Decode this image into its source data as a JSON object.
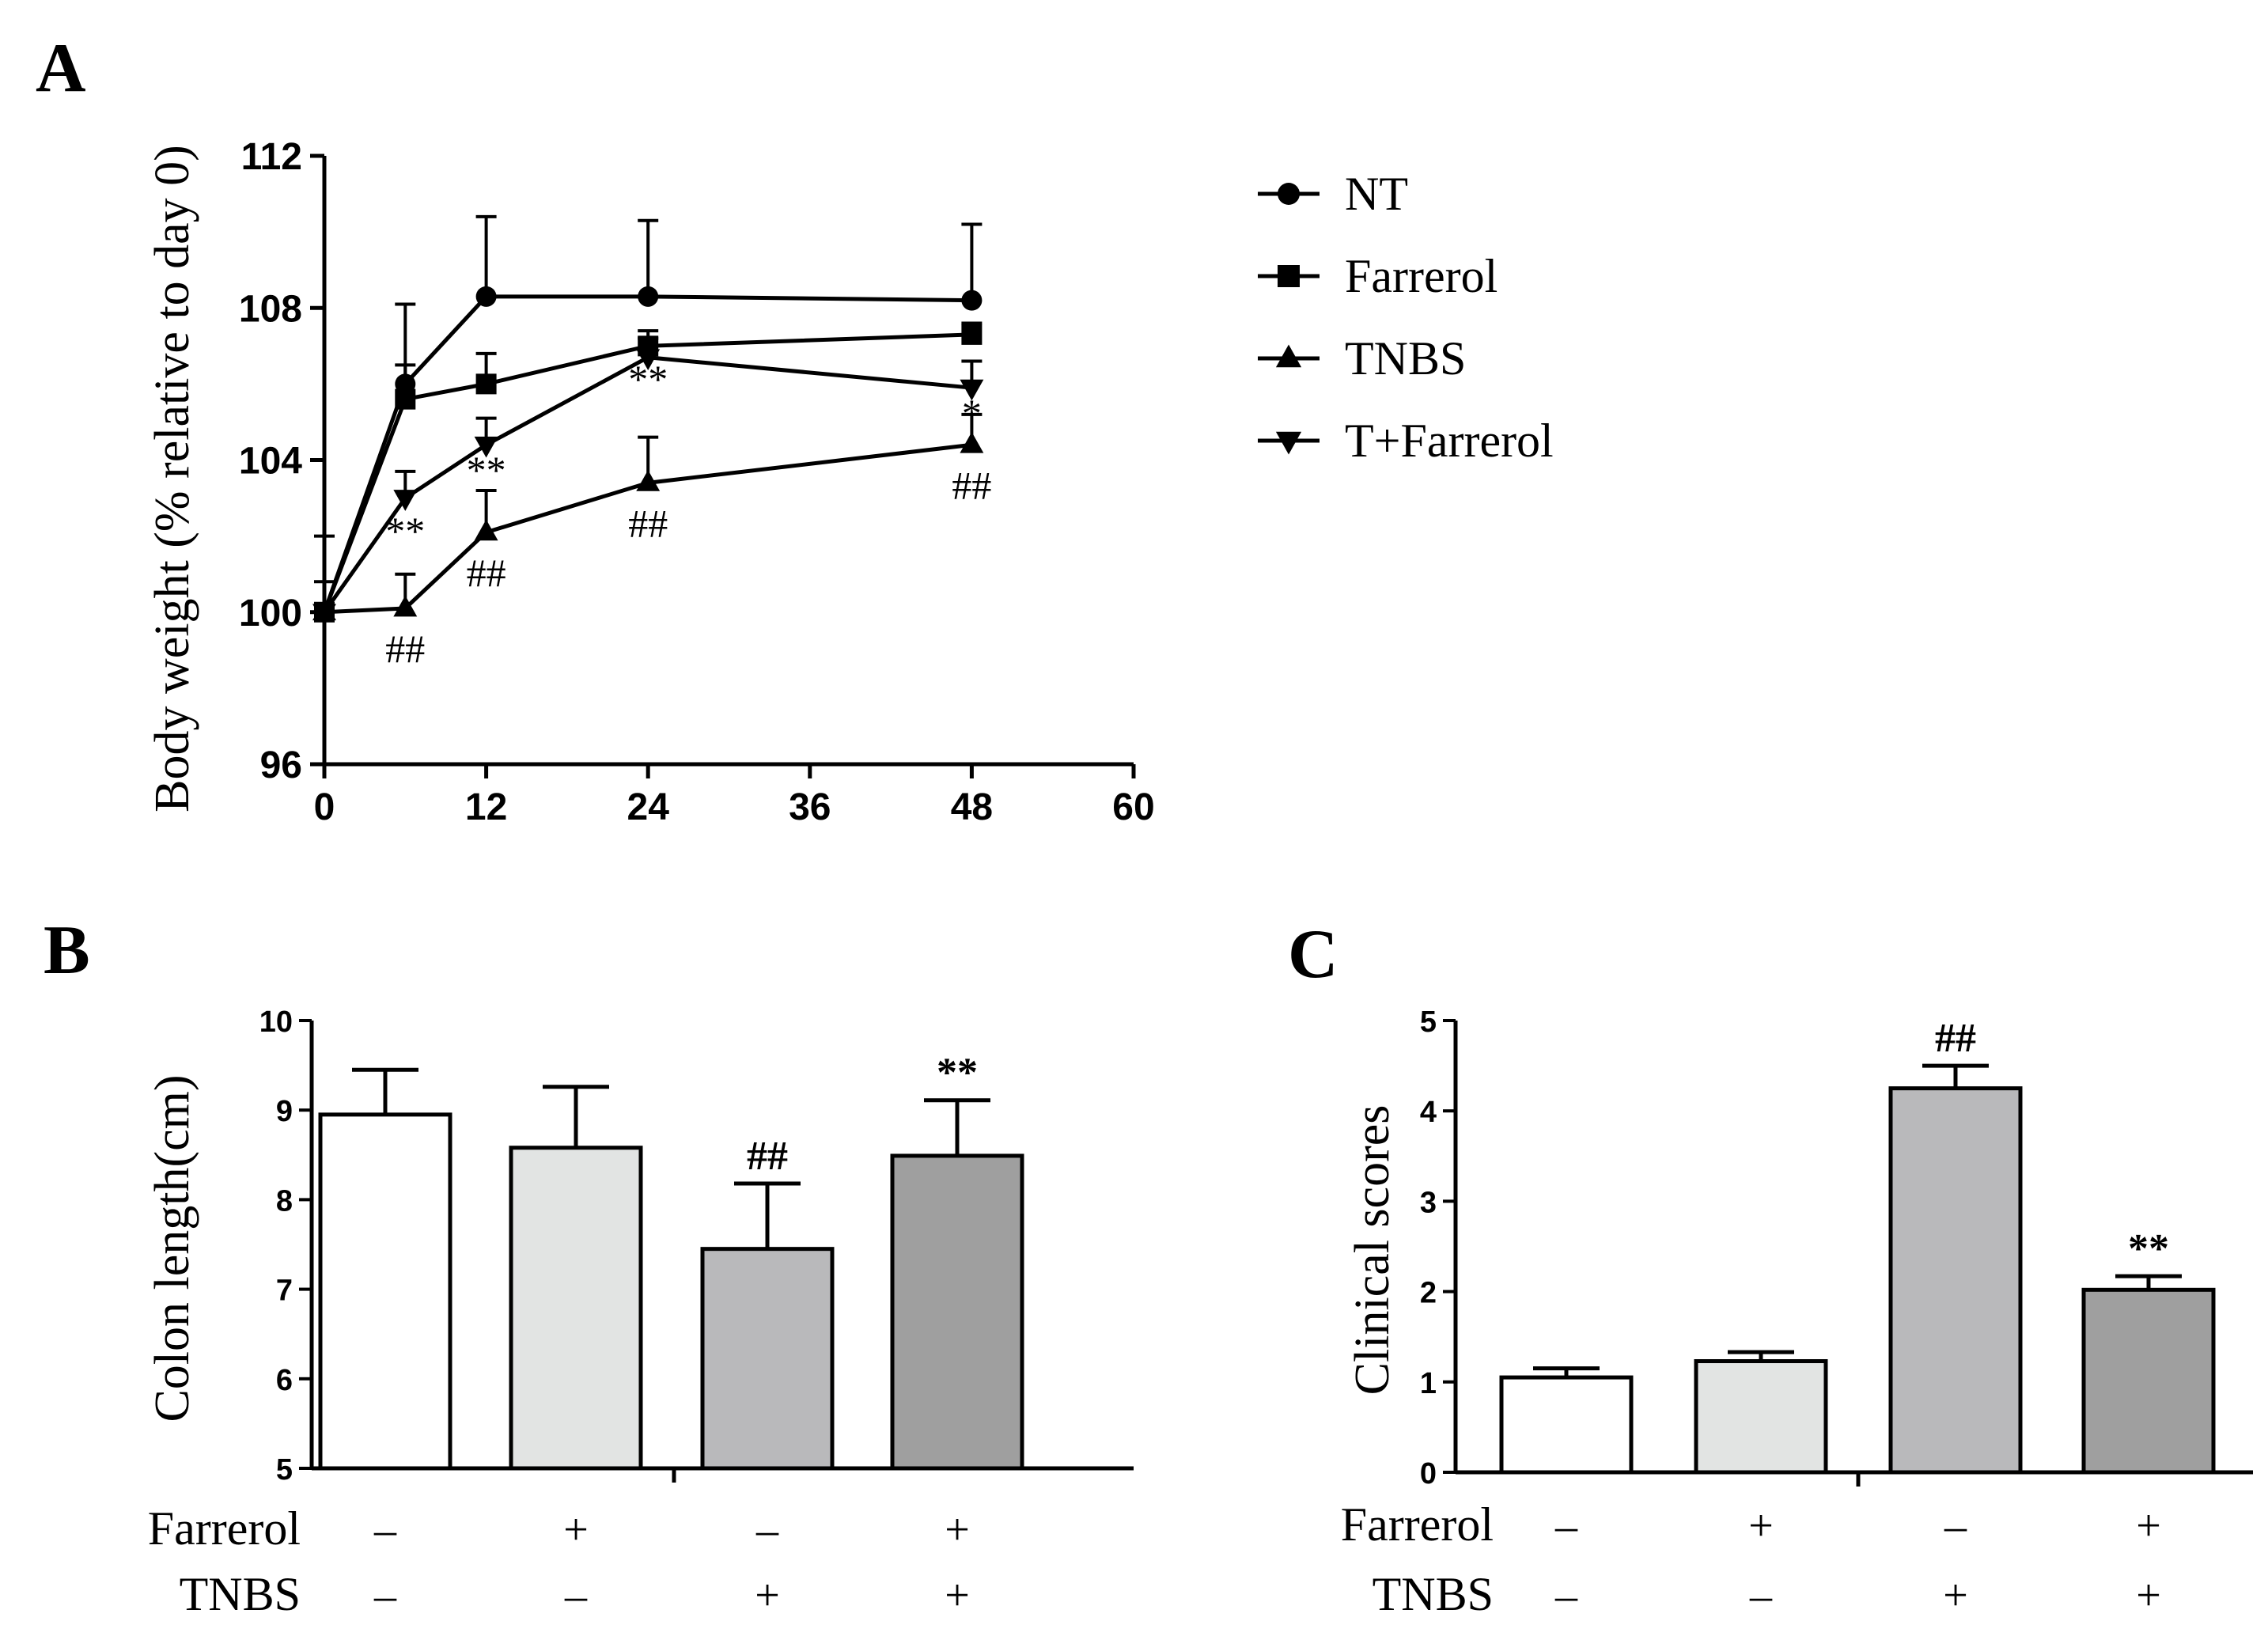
{
  "panels": {
    "A": {
      "letter": "A",
      "chart_data": {
        "type": "line",
        "xlabel": "",
        "ylabel": "Body weight (% relative to day 0)",
        "xlim": [
          0,
          60
        ],
        "ylim": [
          96,
          112
        ],
        "xticks": [
          0,
          12,
          24,
          36,
          48,
          60
        ],
        "yticks": [
          96,
          100,
          104,
          108,
          112
        ],
        "grid": false,
        "legend_position": "right",
        "series": [
          {
            "name": "NT",
            "marker": "circle",
            "x": [
              0,
              6,
              12,
              24,
              48
            ],
            "y": [
              100,
              106.0,
              108.3,
              108.3,
              108.2
            ],
            "err": [
              0,
              2.1,
              2.1,
              2.0,
              2.0
            ]
          },
          {
            "name": "Farrerol",
            "marker": "square",
            "x": [
              0,
              6,
              12,
              24,
              48
            ],
            "y": [
              100,
              105.6,
              106.0,
              107.0,
              107.3
            ],
            "err": [
              0,
              0.9,
              0.8,
              0.4,
              0.3
            ]
          },
          {
            "name": "TNBS",
            "marker": "triangle-up",
            "x": [
              0,
              6,
              12,
              24,
              48
            ],
            "y": [
              100,
              100.1,
              102.1,
              103.4,
              104.4
            ],
            "err": [
              0.8,
              0.9,
              1.1,
              1.2,
              0.8
            ]
          },
          {
            "name": "T+Farrerol",
            "marker": "triangle-down",
            "x": [
              0,
              6,
              12,
              24,
              48
            ],
            "y": [
              100,
              103.0,
              104.4,
              106.7,
              105.9
            ],
            "err": [
              2.0,
              0.7,
              0.7,
              0.5,
              0.7
            ]
          }
        ],
        "annotations": [
          {
            "text": "**",
            "x": 6,
            "y": 102.2
          },
          {
            "text": "**",
            "x": 12,
            "y": 103.8
          },
          {
            "text": "**",
            "x": 24,
            "y": 106.2
          },
          {
            "text": "*",
            "x": 48,
            "y": 105.3
          },
          {
            "text": "##",
            "x": 6,
            "y": 99.1
          },
          {
            "text": "##",
            "x": 12,
            "y": 101.1
          },
          {
            "text": "##",
            "x": 24,
            "y": 102.4
          },
          {
            "text": "##",
            "x": 48,
            "y": 103.4
          }
        ]
      }
    },
    "B": {
      "letter": "B",
      "chart_data": {
        "type": "bar",
        "xlabel": "",
        "ylabel": "Colon length(cm)",
        "ylim": [
          5,
          10
        ],
        "yticks": [
          5,
          6,
          7,
          8,
          9,
          10
        ],
        "grid": false,
        "values": [
          8.95,
          8.58,
          7.45,
          8.49
        ],
        "errors": [
          0.5,
          0.68,
          0.73,
          0.62
        ],
        "colors": [
          "#ffffff",
          "#e2e4e3",
          "#b9b9bb",
          "#9f9f9f"
        ],
        "annotations": [
          "",
          "",
          "##",
          "**"
        ],
        "row_labels": [
          "Farrerol",
          "TNBS"
        ],
        "conditions": [
          [
            "–",
            "–"
          ],
          [
            "+",
            "–"
          ],
          [
            "–",
            "+"
          ],
          [
            "+",
            "+"
          ]
        ]
      }
    },
    "C": {
      "letter": "C",
      "chart_data": {
        "type": "bar",
        "xlabel": "",
        "ylabel": "Clinical scores",
        "ylim": [
          0,
          5
        ],
        "yticks": [
          0,
          1,
          2,
          3,
          4,
          5
        ],
        "grid": false,
        "values": [
          1.05,
          1.23,
          4.25,
          2.02
        ],
        "errors": [
          0.1,
          0.1,
          0.25,
          0.15
        ],
        "colors": [
          "#ffffff",
          "#e2e4e3",
          "#b9b9bb",
          "#9f9f9f"
        ],
        "annotations": [
          "",
          "",
          "##",
          "**"
        ],
        "row_labels": [
          "Farrerol",
          "TNBS"
        ],
        "conditions": [
          [
            "–",
            "–"
          ],
          [
            "+",
            "–"
          ],
          [
            "–",
            "+"
          ],
          [
            "+",
            "+"
          ]
        ]
      }
    }
  }
}
